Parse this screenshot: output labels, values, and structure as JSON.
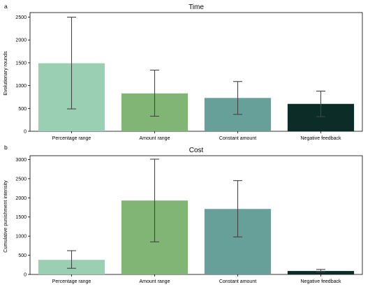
{
  "colors": {
    "percentage_range": "#9acfb4",
    "amount_range": "#80b575",
    "constant_amount": "#66a098",
    "negative_feedback": "#0c2d27",
    "errorbar": "#444444",
    "axis": "#000000"
  },
  "chart_data": [
    {
      "type": "bar",
      "panel_label": "a",
      "title": "Time",
      "xlabel": "",
      "ylabel": "Evolutionary rounds",
      "ylim": [
        0,
        2600
      ],
      "yticks": [
        0,
        500,
        1000,
        1500,
        2000,
        2500
      ],
      "categories": [
        "Percentage range",
        "Amount range",
        "Constant amount",
        "Negative feedback"
      ],
      "values": [
        1490,
        830,
        730,
        600
      ],
      "error_low": [
        490,
        330,
        370,
        320
      ],
      "error_high": [
        2500,
        1340,
        1090,
        880
      ],
      "grid": false
    },
    {
      "type": "bar",
      "panel_label": "b",
      "title": "Cost",
      "xlabel": "",
      "ylabel": "Cumulative punishment intensity",
      "ylim": [
        0,
        3100
      ],
      "yticks": [
        0,
        500,
        1000,
        1500,
        2000,
        2500,
        3000
      ],
      "categories": [
        "Percentage range",
        "Amount range",
        "Constant amount",
        "Negative feedback"
      ],
      "values": [
        380,
        1930,
        1710,
        90
      ],
      "error_low": [
        160,
        850,
        980,
        70
      ],
      "error_high": [
        620,
        3010,
        2450,
        130
      ],
      "grid": false
    }
  ]
}
